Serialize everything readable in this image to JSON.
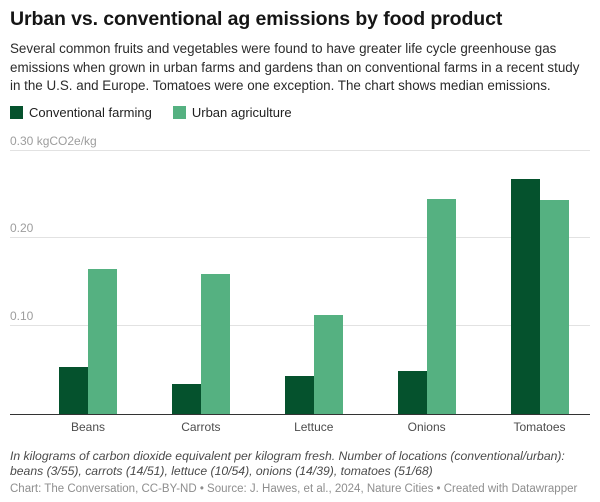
{
  "header": {
    "title": "Urban vs. conventional ag emissions by food product",
    "description": "Several common fruits and vegetables were found to have greater life cycle greenhouse gas emissions when grown in urban farms and gardens than on conventional farms in a recent study in the U.S. and Europe. Tomatoes were one exception. The chart shows median emissions."
  },
  "colors": {
    "conventional": "#05522d",
    "urban": "#55b181",
    "gridline": "#e2e2e2",
    "axis_line": "#333333",
    "tick_text": "#9d9d9d",
    "category_text": "#4c4c4c"
  },
  "legend": {
    "items": [
      {
        "label": "Conventional farming",
        "color": "#05522d"
      },
      {
        "label": "Urban agriculture",
        "color": "#55b181"
      }
    ]
  },
  "chart_data": {
    "type": "bar",
    "title": "Urban vs. conventional ag emissions by food product",
    "categories": [
      "Beans",
      "Carrots",
      "Lettuce",
      "Onions",
      "Tomatoes"
    ],
    "series": [
      {
        "name": "Conventional farming",
        "color": "#05522d",
        "values": [
          0.053,
          0.034,
          0.043,
          0.049,
          0.268
        ]
      },
      {
        "name": "Urban agriculture",
        "color": "#55b181",
        "values": [
          0.165,
          0.159,
          0.112,
          0.245,
          0.244
        ]
      }
    ],
    "unit": "kgCO2e/kg",
    "ylim": [
      0,
      0.3
    ],
    "yticks": [
      0.1,
      0.2,
      0.3
    ],
    "ytick_labels": [
      "0.10",
      "0.20",
      "0.30 kgCO2e/kg"
    ],
    "grid": true,
    "legend_position": "top-left"
  },
  "footer": {
    "note": "In kilograms of carbon dioxide equivalent per kilogram fresh. Number of locations (conventional/urban): beans (3/55), carrots (14/51), lettuce (10/54), onions (14/39), tomatoes (51/68)",
    "credit": "Chart: The Conversation, CC-BY-ND • Source: J. Hawes, et al., 2024, Nature Cities • Created with Datawrapper"
  }
}
